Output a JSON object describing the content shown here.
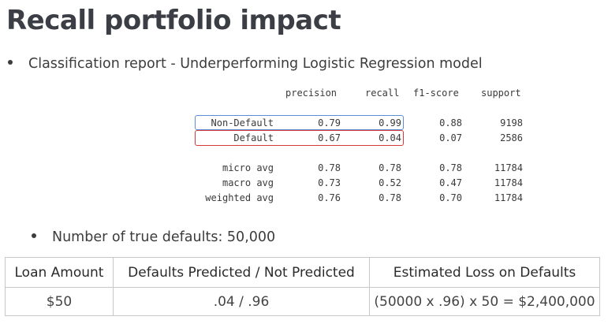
{
  "title": "Recall portfolio impact",
  "bullets": {
    "report_caption": "Classification report - Underperforming Logistic Regression model",
    "true_defaults": "Number of true defaults: 50,000"
  },
  "report": {
    "headers": [
      "precision",
      "recall",
      "f1-score",
      "support"
    ],
    "rows": [
      {
        "label": "Non-Default",
        "values": [
          "0.79",
          "0.99",
          "0.88",
          "9198"
        ]
      },
      {
        "label": "Default",
        "values": [
          "0.67",
          "0.04",
          "0.07",
          "2586"
        ]
      },
      {
        "label": "micro avg",
        "values": [
          "0.78",
          "0.78",
          "0.78",
          "11784"
        ]
      },
      {
        "label": "macro avg",
        "values": [
          "0.73",
          "0.52",
          "0.47",
          "11784"
        ]
      },
      {
        "label": "weighted avg",
        "values": [
          "0.76",
          "0.78",
          "0.70",
          "11784"
        ]
      }
    ],
    "highlight_colors": {
      "non_default": "#5a8fd8",
      "default": "#d43a3a"
    }
  },
  "loss_table": {
    "headers": [
      "Loan Amount",
      "Defaults Predicted / Not Predicted",
      "Estimated Loss on Defaults"
    ],
    "row": [
      "$50",
      ".04 / .96",
      "(50000 x .96) x 50 = $2,400,000"
    ]
  }
}
